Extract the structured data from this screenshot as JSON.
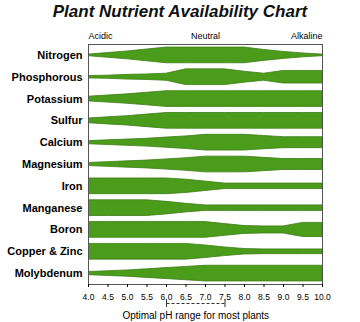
{
  "chart_data": {
    "type": "band",
    "title": "Plant Nutrient Availability Chart",
    "x": [
      4.0,
      4.5,
      5.0,
      5.5,
      6.0,
      6.5,
      7.0,
      7.5,
      8.0,
      8.5,
      9.0,
      9.5,
      10.0
    ],
    "series": [
      {
        "name": "Nitrogen",
        "values": [
          0.1,
          0.3,
          0.5,
          0.75,
          1,
          1,
          1,
          1,
          1,
          0.7,
          0.45,
          0.25,
          0.1
        ]
      },
      {
        "name": "Phosphorous",
        "values": [
          0.15,
          0.2,
          0.3,
          0.35,
          0.45,
          1,
          1,
          1,
          0.7,
          0.45,
          0.8,
          0.8,
          0.8
        ]
      },
      {
        "name": "Potassium",
        "values": [
          0.3,
          0.45,
          0.6,
          0.8,
          1,
          1,
          1,
          1,
          1,
          1,
          1,
          1,
          1
        ]
      },
      {
        "name": "Sulfur",
        "values": [
          0.3,
          0.45,
          0.6,
          0.8,
          1,
          1,
          1,
          1,
          1,
          1,
          1,
          1,
          1
        ]
      },
      {
        "name": "Calcium",
        "values": [
          0.2,
          0.3,
          0.4,
          0.5,
          0.65,
          0.8,
          1,
          1,
          1,
          0.85,
          0.7,
          0.7,
          0.7
        ]
      },
      {
        "name": "Magnesium",
        "values": [
          0.2,
          0.3,
          0.4,
          0.5,
          0.65,
          0.8,
          1,
          1,
          1,
          0.85,
          0.7,
          0.7,
          0.7
        ]
      },
      {
        "name": "Iron",
        "values": [
          1,
          1,
          1,
          1,
          1,
          0.85,
          0.6,
          0.35,
          0.35,
          0.35,
          0.35,
          0.35,
          0.35
        ]
      },
      {
        "name": "Manganese",
        "values": [
          1,
          1,
          1,
          1,
          0.8,
          0.55,
          0.35,
          0.35,
          0.35,
          0.35,
          0.35,
          0.35,
          0.35
        ]
      },
      {
        "name": "Boron",
        "values": [
          1,
          1,
          1,
          1,
          1,
          1,
          1,
          0.75,
          0.5,
          0.45,
          0.45,
          0.9,
          0.9
        ]
      },
      {
        "name": "Copper & Zinc",
        "values": [
          1,
          1,
          1,
          1,
          1,
          1,
          0.8,
          0.55,
          0.35,
          0.3,
          0.3,
          0.3,
          0.3
        ]
      },
      {
        "name": "Molybdenum",
        "values": [
          0.2,
          0.3,
          0.4,
          0.55,
          0.7,
          0.85,
          1,
          1,
          1,
          1,
          1,
          1,
          1
        ]
      }
    ],
    "color": "#4a9c1a",
    "xlim": [
      4.0,
      10.0
    ],
    "xticks": [
      {
        "value": 4,
        "label": "4.0"
      },
      4.5,
      {
        "value": 5,
        "label": "5.0"
      },
      5.5,
      {
        "value": 6,
        "label": "6.0"
      },
      6.5,
      {
        "value": 7,
        "label": "7.0"
      },
      7.5,
      {
        "value": 8,
        "label": "8.0"
      },
      8.5,
      {
        "value": 9,
        "label": "9.0"
      },
      9.5,
      {
        "value": 10,
        "label": "10.0"
      }
    ],
    "annotations": [
      {
        "text": "Acidic",
        "x": 4.0
      },
      {
        "text": "Neutral",
        "x": 7.0
      },
      {
        "text": "Alkaline",
        "x": 10.0
      }
    ],
    "optimal_range": {
      "x": [
        6.0,
        7.5
      ],
      "label": "Optimal pH range for most plants"
    }
  }
}
